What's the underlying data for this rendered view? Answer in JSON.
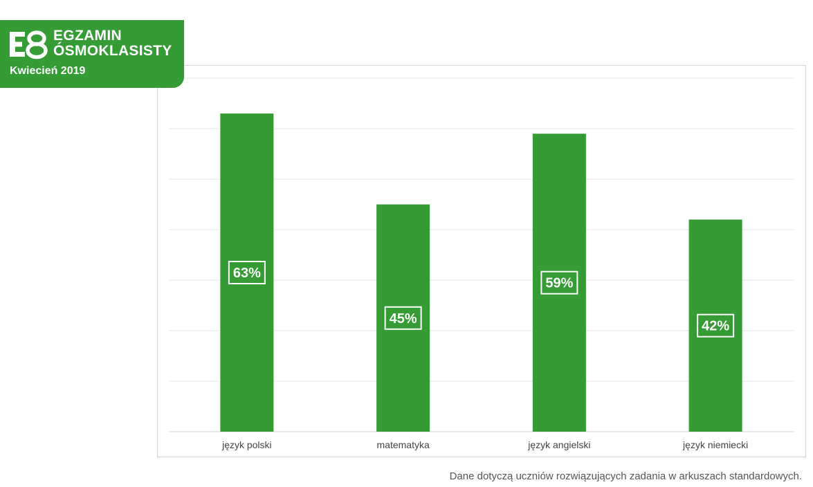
{
  "badge": {
    "logo_mark": "E8",
    "title_line1": "EGZAMIN",
    "title_line2": "ÓSMOKLASISTY",
    "date": "Kwiecień 2019",
    "color": "#349b35"
  },
  "chart_data": {
    "type": "bar",
    "categories": [
      "język polski",
      "matematyka",
      "język angielski",
      "język niemiecki"
    ],
    "values": [
      63,
      45,
      59,
      42
    ],
    "value_labels": [
      "63%",
      "45%",
      "59%",
      "42%"
    ],
    "ylim": [
      0,
      70
    ],
    "grid": true,
    "bar_color": "#349b35"
  },
  "footnote": "Dane dotyczą uczniów rozwiązujących zadania w arkuszach standardowych."
}
